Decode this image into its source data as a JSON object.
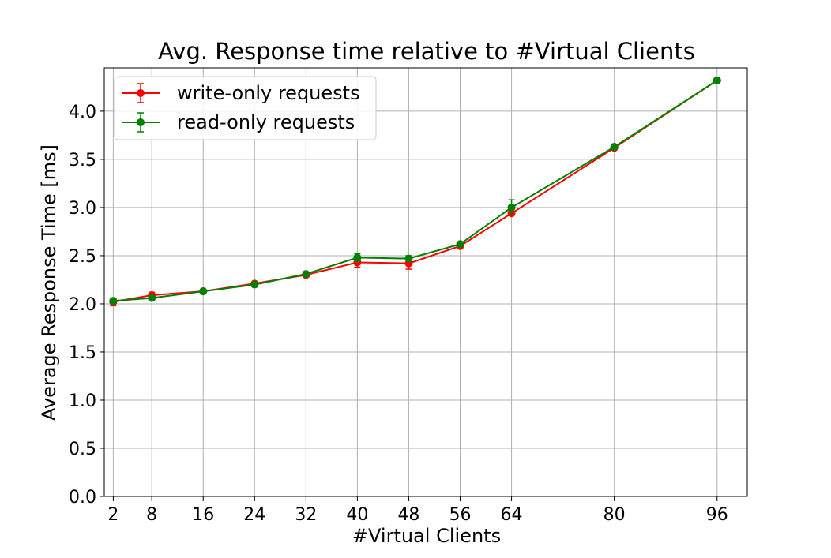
{
  "chart_data": {
    "type": "line",
    "title": "Avg. Response time relative to #Virtual Clients",
    "xlabel": "#Virtual Clients",
    "ylabel": "Average Response Time [ms]",
    "x": [
      2,
      8,
      16,
      24,
      32,
      40,
      48,
      56,
      64,
      80,
      96
    ],
    "xticks": [
      "2",
      "8",
      "16",
      "24",
      "32",
      "40",
      "48",
      "56",
      "64",
      "80",
      "96"
    ],
    "yticks": [
      "0.0",
      "0.5",
      "1.0",
      "1.5",
      "2.0",
      "2.5",
      "3.0",
      "3.5",
      "4.0"
    ],
    "xlim": [
      0.6,
      100.7
    ],
    "ylim": [
      0,
      4.45
    ],
    "grid": true,
    "legend_position": "top-left",
    "series": [
      {
        "name": "write-only requests",
        "color": "#ff0000",
        "values": [
          2.02,
          2.09,
          2.13,
          2.21,
          2.3,
          2.43,
          2.42,
          2.6,
          2.94,
          3.62,
          4.32
        ],
        "errors": [
          0.04,
          0.03,
          0.01,
          0.01,
          0.02,
          0.05,
          0.06,
          0.02,
          0.02,
          0.01,
          0.01
        ]
      },
      {
        "name": "read-only requests",
        "color": "#008000",
        "values": [
          2.03,
          2.06,
          2.13,
          2.2,
          2.31,
          2.48,
          2.47,
          2.62,
          3.0,
          3.63,
          4.32
        ],
        "errors": [
          0.02,
          0.02,
          0.01,
          0.01,
          0.01,
          0.04,
          0.03,
          0.02,
          0.08,
          0.01,
          0.01
        ]
      }
    ]
  }
}
